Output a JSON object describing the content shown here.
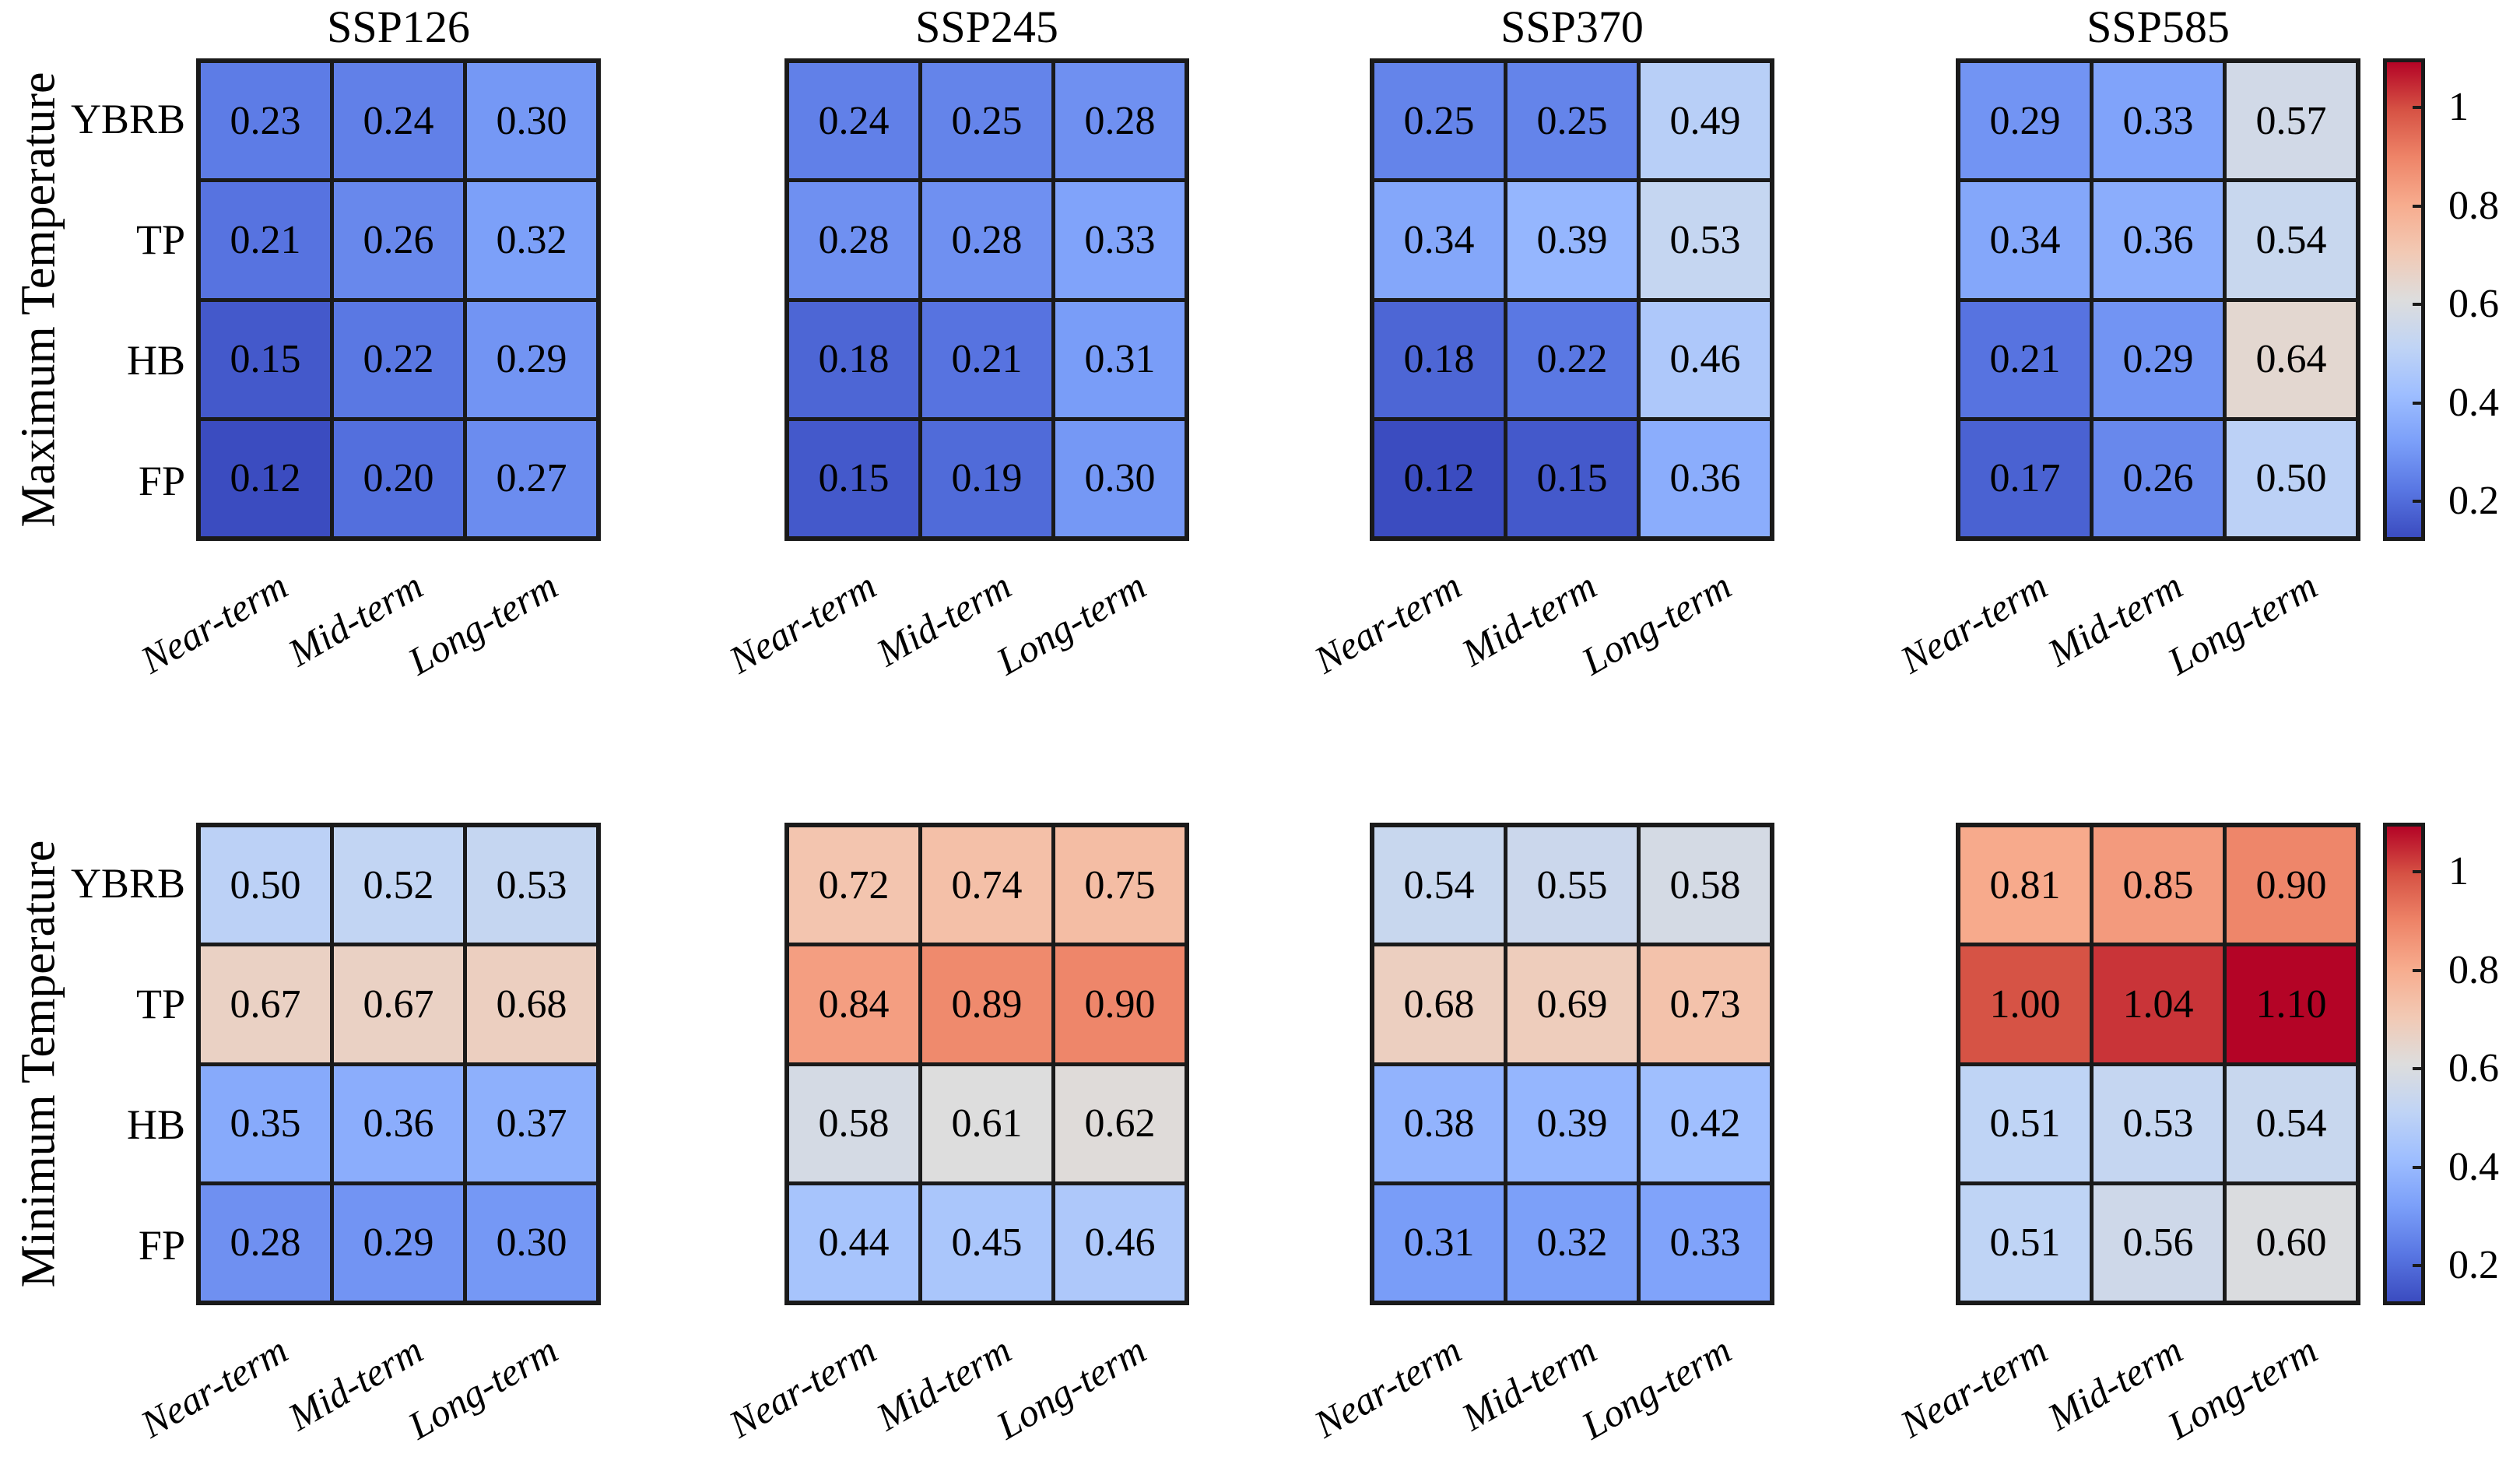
{
  "page": {
    "background": "#ffffff"
  },
  "chart_data": {
    "type": "heatmap",
    "columns": [
      "Near-term",
      "Mid-term",
      "Long-term"
    ],
    "rows": [
      "YBRB",
      "TP",
      "HB",
      "FP"
    ],
    "row_groups": [
      {
        "ylabel": "Maximum Temperature",
        "show_titles": true,
        "panels": [
          {
            "scenario": "SSP126",
            "values": [
              [
                0.23,
                0.24,
                0.3
              ],
              [
                0.21,
                0.26,
                0.32
              ],
              [
                0.15,
                0.22,
                0.29
              ],
              [
                0.12,
                0.2,
                0.27
              ]
            ]
          },
          {
            "scenario": "SSP245",
            "values": [
              [
                0.24,
                0.25,
                0.28
              ],
              [
                0.28,
                0.28,
                0.33
              ],
              [
                0.18,
                0.21,
                0.31
              ],
              [
                0.15,
                0.19,
                0.3
              ]
            ]
          },
          {
            "scenario": "SSP370",
            "values": [
              [
                0.25,
                0.25,
                0.49
              ],
              [
                0.34,
                0.39,
                0.53
              ],
              [
                0.18,
                0.22,
                0.46
              ],
              [
                0.12,
                0.15,
                0.36
              ]
            ]
          },
          {
            "scenario": "SSP585",
            "values": [
              [
                0.29,
                0.33,
                0.57
              ],
              [
                0.34,
                0.36,
                0.54
              ],
              [
                0.21,
                0.29,
                0.64
              ],
              [
                0.17,
                0.26,
                0.5
              ]
            ]
          }
        ]
      },
      {
        "ylabel": "Minimum Temperature",
        "show_titles": false,
        "panels": [
          {
            "scenario": "SSP126",
            "values": [
              [
                0.5,
                0.52,
                0.53
              ],
              [
                0.67,
                0.67,
                0.68
              ],
              [
                0.35,
                0.36,
                0.37
              ],
              [
                0.28,
                0.29,
                0.3
              ]
            ]
          },
          {
            "scenario": "SSP245",
            "values": [
              [
                0.72,
                0.74,
                0.75
              ],
              [
                0.84,
                0.89,
                0.9
              ],
              [
                0.58,
                0.61,
                0.62
              ],
              [
                0.44,
                0.45,
                0.46
              ]
            ]
          },
          {
            "scenario": "SSP370",
            "values": [
              [
                0.54,
                0.55,
                0.58
              ],
              [
                0.68,
                0.69,
                0.73
              ],
              [
                0.38,
                0.39,
                0.42
              ],
              [
                0.31,
                0.32,
                0.33
              ]
            ]
          },
          {
            "scenario": "SSP585",
            "values": [
              [
                0.81,
                0.85,
                0.9
              ],
              [
                1.0,
                1.04,
                1.1
              ],
              [
                0.51,
                0.53,
                0.54
              ],
              [
                0.51,
                0.56,
                0.6
              ]
            ]
          }
        ]
      }
    ],
    "colorbar": {
      "tick_labels": [
        "1",
        "0.8",
        "0.6",
        "0.4",
        "0.2"
      ],
      "tick_values": [
        1,
        0.8,
        0.6,
        0.4,
        0.2
      ],
      "vmin": 0.12,
      "vmax": 1.1,
      "colormap": "coolwarm",
      "colormap_stops": [
        "#3B4CC0",
        "#5977E3",
        "#7B9FF9",
        "#9EBEFF",
        "#C0D4F5",
        "#DDDDDD",
        "#F2C9B4",
        "#F7AC8E",
        "#EE8468",
        "#D65244",
        "#B40426"
      ],
      "grid_line_color": "#1a1a1a"
    }
  }
}
